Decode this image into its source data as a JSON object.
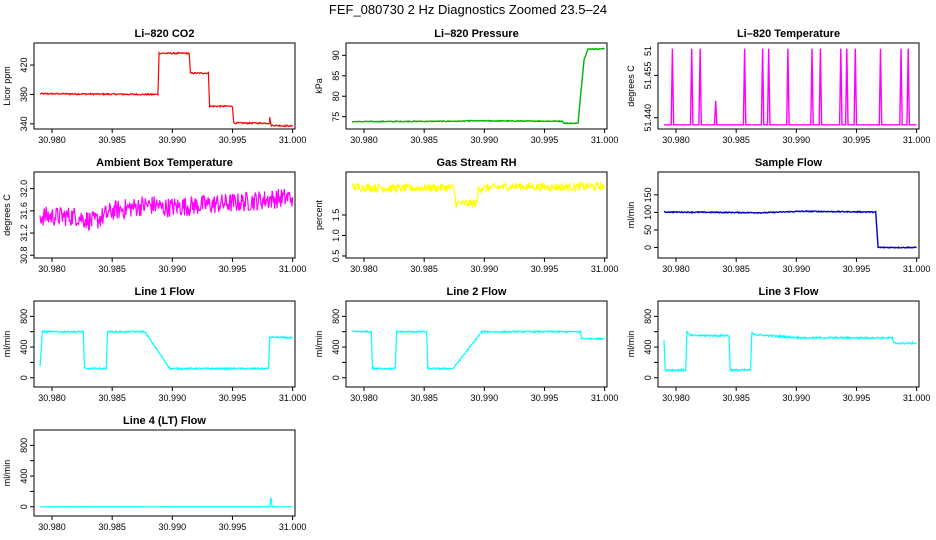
{
  "figure": {
    "title": "FEF_080730  2 Hz Diagnostics Zoomed 23.5–24"
  },
  "chart_data": [
    {
      "type": "line",
      "title": "Li–820 CO2",
      "xlabel": "",
      "ylabel": "Licor ppm",
      "xlim": [
        30.9785,
        31.0002
      ],
      "ylim": [
        333,
        450
      ],
      "x_ticks": [
        "30.980",
        "30.985",
        "30.990",
        "30.995",
        "31.000"
      ],
      "y_ticks": [
        "340",
        "380",
        "420"
      ],
      "color": "#ff0000",
      "noise": 1,
      "series": [
        {
          "x": [
            30.979,
            30.9888,
            30.9889,
            30.9898,
            30.9899,
            30.9914,
            30.9915,
            30.993,
            30.9931,
            30.995,
            30.9951,
            30.9981,
            30.9981,
            30.9982,
            31.0
          ],
          "y": [
            381,
            380,
            436,
            436,
            436,
            436,
            409,
            409,
            364,
            364,
            341,
            341,
            350,
            338,
            337
          ]
        }
      ]
    },
    {
      "type": "line",
      "title": "Li–820 Pressure",
      "xlabel": "",
      "ylabel": "kPa",
      "xlim": [
        30.9785,
        31.0002
      ],
      "ylim": [
        72,
        93
      ],
      "x_ticks": [
        "30.980",
        "30.985",
        "30.990",
        "30.995",
        "31.000"
      ],
      "y_ticks": [
        "75",
        "80",
        "85",
        "90"
      ],
      "color": "#00b400",
      "noise": 0.1,
      "series": [
        {
          "x": [
            30.979,
            30.988,
            30.989,
            30.9965,
            30.9966,
            30.9978,
            30.998,
            30.9983,
            30.9986,
            31.0
          ],
          "y": [
            73.8,
            73.9,
            74.0,
            73.9,
            73.4,
            73.4,
            80,
            89,
            91.5,
            91.6
          ]
        }
      ]
    },
    {
      "type": "line",
      "title": "Li–820 Temperature",
      "xlabel": "",
      "ylabel": "degrees C",
      "xlim": [
        30.9785,
        31.0002
      ],
      "ylim": [
        51.436,
        51.4665
      ],
      "x_ticks": [
        "30.980",
        "30.985",
        "30.990",
        "30.995",
        "31.000"
      ],
      "y_ticks": [
        "51.440",
        "51.455"
      ],
      "y_ticks_extra": [
        "51"
      ],
      "color": "#ff00ff",
      "noise": 0,
      "series": [
        {
          "x": [
            30.979,
            30.9796,
            30.9797,
            30.9798,
            30.9799,
            30.9812,
            30.9813,
            30.9814,
            30.9819,
            30.982,
            30.9821,
            30.9832,
            30.9833,
            30.9834,
            30.9856,
            30.9857,
            30.9858,
            30.9871,
            30.9872,
            30.9873,
            30.9876,
            30.9877,
            30.9878,
            30.9892,
            30.9893,
            30.9894,
            30.9912,
            30.9913,
            30.9914,
            30.9919,
            30.992,
            30.9921,
            30.9936,
            30.9937,
            30.9938,
            30.9941,
            30.9942,
            30.9943,
            30.9948,
            30.9949,
            30.995,
            30.9969,
            30.997,
            30.9971,
            30.9986,
            30.9987,
            30.9988,
            30.9992,
            30.9993,
            30.9994,
            31.0
          ],
          "y": [
            51.4375,
            51.4375,
            51.4645,
            51.4375,
            51.4375,
            51.4375,
            51.4645,
            51.4375,
            51.4375,
            51.4645,
            51.4375,
            51.4375,
            51.446,
            51.4375,
            51.4375,
            51.4645,
            51.4375,
            51.4375,
            51.4645,
            51.4375,
            51.4375,
            51.4645,
            51.4375,
            51.4375,
            51.4645,
            51.4375,
            51.4375,
            51.4645,
            51.4375,
            51.4375,
            51.4645,
            51.4375,
            51.4375,
            51.4645,
            51.4375,
            51.4375,
            51.4645,
            51.4375,
            51.4375,
            51.4645,
            51.4375,
            51.4375,
            51.4645,
            51.4375,
            51.4375,
            51.4645,
            51.4375,
            51.4375,
            51.4645,
            51.4375,
            51.4375
          ]
        }
      ]
    },
    {
      "type": "line",
      "title": "Ambient Box Temperature",
      "xlabel": "",
      "ylabel": "degrees C",
      "xlim": [
        30.9785,
        31.0002
      ],
      "ylim": [
        30.75,
        32.3
      ],
      "x_ticks": [
        "30.980",
        "30.985",
        "30.990",
        "30.995",
        "31.000"
      ],
      "y_ticks": [
        "30.8",
        "31.2",
        "31.6",
        "32.0"
      ],
      "color": "#ff00ff",
      "noise": 0.18,
      "series": [
        {
          "x": [
            30.979,
            30.982,
            30.9835,
            30.985,
            30.9878,
            30.9879,
            30.9889,
            30.989,
            30.992,
            30.9955,
            31.0
          ],
          "y": [
            31.5,
            31.5,
            31.4,
            31.6,
            31.7,
            31.7,
            31.7,
            31.65,
            31.7,
            31.75,
            31.85
          ]
        }
      ]
    },
    {
      "type": "line",
      "title": "Gas Stream RH",
      "xlabel": "",
      "ylabel": "percent",
      "xlim": [
        30.9785,
        31.0002
      ],
      "ylim": [
        0.45,
        2.55
      ],
      "x_ticks": [
        "30.980",
        "30.985",
        "30.990",
        "30.995",
        "31.000"
      ],
      "y_ticks": [
        "0.5",
        "1.0",
        "1.5"
      ],
      "color": "#ffff00",
      "noise": 0.1,
      "series": [
        {
          "x": [
            30.979,
            30.983,
            30.987,
            30.9875,
            30.9876,
            30.9894,
            30.9895,
            30.9925,
            30.9955,
            31.0
          ],
          "y": [
            2.18,
            2.15,
            2.17,
            2.15,
            1.78,
            1.78,
            2.15,
            2.2,
            2.18,
            2.2
          ]
        }
      ]
    },
    {
      "type": "line",
      "title": "Sample Flow",
      "xlabel": "",
      "ylabel": "ml/min",
      "xlim": [
        30.9785,
        31.0002
      ],
      "ylim": [
        -30,
        215
      ],
      "x_ticks": [
        "30.980",
        "30.985",
        "30.990",
        "30.995",
        "31.000"
      ],
      "y_ticks": [
        "0",
        "50",
        "100",
        "150"
      ],
      "color": "#0000c8",
      "noise": 1.4,
      "series": [
        {
          "x": [
            30.979,
            30.9875,
            30.988,
            30.9905,
            30.9965,
            30.9966,
            30.9968,
            31.0
          ],
          "y": [
            101,
            99,
            100,
            103,
            101,
            101,
            0,
            0
          ]
        }
      ]
    },
    {
      "type": "line",
      "title": "Line 1 Flow",
      "xlabel": "",
      "ylabel": "ml/min",
      "xlim": [
        30.9785,
        31.0002
      ],
      "ylim": [
        -120,
        1000
      ],
      "x_ticks": [
        "30.980",
        "30.985",
        "30.990",
        "30.995",
        "31.000"
      ],
      "y_ticks": [
        "0",
        "400",
        "800"
      ],
      "y_ticks_extra": [
        "200",
        "600"
      ],
      "color": "#00ffff",
      "noise": 10,
      "series": [
        {
          "x": [
            30.979,
            30.9792,
            30.9826,
            30.9827,
            30.9845,
            30.9846,
            30.9877,
            30.9898,
            30.998,
            30.9981,
            31.0
          ],
          "y": [
            150,
            600,
            600,
            120,
            120,
            600,
            600,
            120,
            120,
            530,
            520
          ]
        }
      ]
    },
    {
      "type": "line",
      "title": "Line 2 Flow",
      "xlabel": "",
      "ylabel": "ml/min",
      "xlim": [
        30.9785,
        31.0002
      ],
      "ylim": [
        -120,
        1000
      ],
      "x_ticks": [
        "30.980",
        "30.985",
        "30.990",
        "30.995",
        "31.000"
      ],
      "y_ticks": [
        "0",
        "400",
        "800"
      ],
      "y_ticks_extra": [
        "200",
        "600"
      ],
      "color": "#00ffff",
      "noise": 10,
      "series": [
        {
          "x": [
            30.979,
            30.9806,
            30.9807,
            30.9826,
            30.9827,
            30.9852,
            30.9853,
            30.9874,
            30.9898,
            30.998,
            30.9981,
            31.0
          ],
          "y": [
            600,
            600,
            120,
            120,
            600,
            600,
            120,
            120,
            600,
            600,
            510,
            510
          ]
        }
      ]
    },
    {
      "type": "line",
      "title": "Line 3 Flow",
      "xlabel": "",
      "ylabel": "ml/min",
      "xlim": [
        30.9785,
        31.0002
      ],
      "ylim": [
        -120,
        1000
      ],
      "x_ticks": [
        "30.980",
        "30.985",
        "30.990",
        "30.995",
        "31.000"
      ],
      "y_ticks": [
        "0",
        "400",
        "800"
      ],
      "y_ticks_extra": [
        "200",
        "600"
      ],
      "color": "#00ffff",
      "noise": 12,
      "series": [
        {
          "x": [
            30.979,
            30.9791,
            30.9792,
            30.9808,
            30.9809,
            30.9812,
            30.9844,
            30.9845,
            30.9862,
            30.9863,
            30.9868,
            30.9885,
            30.9905,
            30.998,
            30.9981,
            31.0
          ],
          "y": [
            500,
            100,
            100,
            100,
            600,
            550,
            550,
            100,
            100,
            580,
            560,
            540,
            520,
            520,
            450,
            450
          ]
        }
      ]
    },
    {
      "type": "line",
      "title": "Line 4 (LT) Flow",
      "xlabel": "",
      "ylabel": "ml/min",
      "xlim": [
        30.9785,
        31.0002
      ],
      "ylim": [
        -120,
        1000
      ],
      "x_ticks": [
        "30.980",
        "30.985",
        "30.990",
        "30.995",
        "31.000"
      ],
      "y_ticks": [
        "0",
        "400",
        "800"
      ],
      "y_ticks_extra": [
        "200",
        "600"
      ],
      "color": "#00ffff",
      "noise": 2,
      "series": [
        {
          "x": [
            30.979,
            30.9981,
            30.9982,
            30.9983,
            31.0
          ],
          "y": [
            0,
            0,
            120,
            0,
            0
          ]
        }
      ]
    }
  ]
}
